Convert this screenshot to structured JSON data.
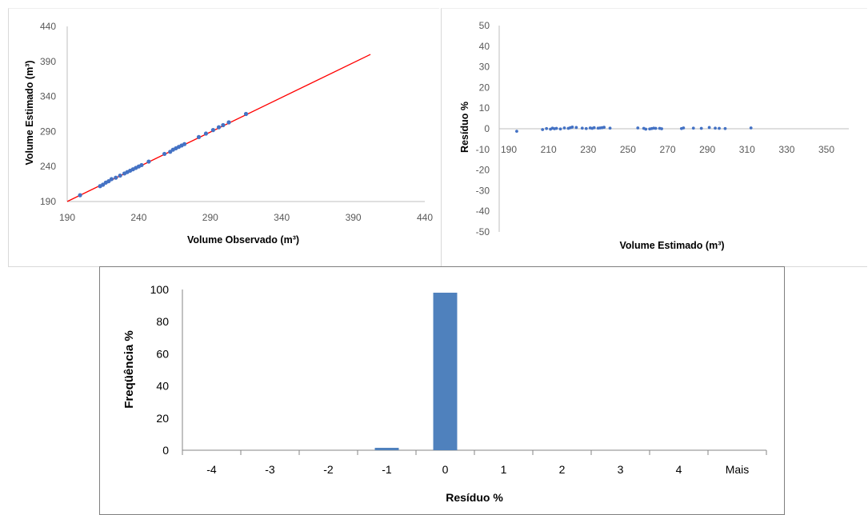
{
  "chart_data": [
    {
      "type": "scatter",
      "xlabel": "Volume Observado (m³)",
      "ylabel": "Volume Estimado (m³)",
      "xlim": [
        190,
        440
      ],
      "ylim": [
        190,
        440
      ],
      "x_ticks": [
        "190",
        "240",
        "290",
        "340",
        "390",
        "440"
      ],
      "y_ticks": [
        "190",
        "240",
        "290",
        "340",
        "390",
        "440"
      ],
      "colors": {
        "points": "#4472c4",
        "reference_line": "#ff0000"
      },
      "reference_line": {
        "x": [
          190,
          402
        ],
        "y": [
          190,
          400
        ]
      },
      "series": [
        {
          "x": [
            199,
            213,
            215,
            217,
            219,
            221,
            224,
            227,
            230,
            232,
            234,
            236,
            238,
            240,
            242,
            247,
            258,
            262,
            264,
            266,
            268,
            270,
            272,
            282,
            287,
            292,
            296,
            299,
            303,
            315
          ],
          "y": [
            199,
            212,
            214,
            217,
            219,
            222,
            224,
            227,
            230,
            232,
            234,
            236,
            238,
            240,
            242,
            247,
            258,
            261,
            264,
            266,
            268,
            270,
            272,
            282,
            287,
            292,
            296,
            299,
            303,
            315
          ]
        }
      ]
    },
    {
      "type": "scatter",
      "xlabel": "Volume Estimado (m³)",
      "ylabel": "Resíduo %",
      "xlim": [
        190,
        350
      ],
      "ylim": [
        -50,
        50
      ],
      "x_ticks": [
        "190",
        "210",
        "230",
        "250",
        "270",
        "290",
        "310",
        "330",
        "350"
      ],
      "y_ticks": [
        "50",
        "40",
        "30",
        "20",
        "10",
        "0",
        "-10",
        "-20",
        "-30",
        "-40",
        "-50"
      ],
      "colors": {
        "points": "#4472c4"
      },
      "series": [
        {
          "x": [
            194,
            207,
            209,
            211,
            212,
            213,
            214,
            216,
            218,
            220,
            221,
            222,
            224,
            227,
            229,
            231,
            232,
            233,
            235,
            236,
            237,
            238,
            241,
            255,
            258,
            259,
            261,
            262,
            263,
            264,
            266,
            267,
            277,
            278,
            283,
            287,
            291,
            294,
            296,
            299,
            312
          ],
          "y": [
            -1.2,
            -0.4,
            0.1,
            -0.2,
            0.3,
            0,
            0.2,
            -0.1,
            0.4,
            0.2,
            0.5,
            0.8,
            0.6,
            0.3,
            0.1,
            0.4,
            0.2,
            0.5,
            0.3,
            0.4,
            0.5,
            0.7,
            0.3,
            0.4,
            0.2,
            -0.2,
            -0.1,
            0.1,
            0.3,
            0.2,
            0.2,
            0,
            0.1,
            0.4,
            0.3,
            0.2,
            0.6,
            0.3,
            0.2,
            0.1,
            0.4
          ]
        }
      ]
    },
    {
      "type": "bar",
      "xlabel": "Resíduo %",
      "ylabel": "Freqüência %",
      "ylim": [
        0,
        100
      ],
      "y_ticks": [
        "0",
        "20",
        "40",
        "60",
        "80",
        "100"
      ],
      "categories": [
        "-4",
        "-3",
        "-2",
        "-1",
        "0",
        "1",
        "2",
        "3",
        "4",
        "Mais"
      ],
      "values": [
        0,
        0,
        0,
        1.5,
        98,
        0,
        0,
        0,
        0,
        0
      ],
      "colors": {
        "bars": "#4f81bd"
      }
    }
  ]
}
